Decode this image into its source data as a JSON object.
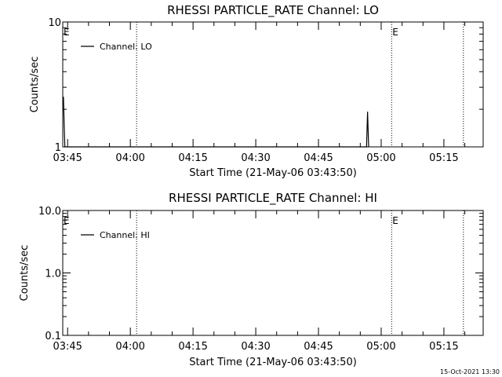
{
  "footer_timestamp": "15-Oct-2021 13:30",
  "chart_data": [
    {
      "type": "line",
      "title": "RHESSI PARTICLE_RATE Channel: LO",
      "xlabel": "Start Time (21-May-06 03:43:50)",
      "ylabel": "Counts/sec",
      "y_scale": "log",
      "ylim": [
        1,
        10
      ],
      "y_ticks": [
        "1",
        "10"
      ],
      "x_ticks": [
        "03:45",
        "04:00",
        "04:15",
        "04:30",
        "04:45",
        "05:00",
        "05:15"
      ],
      "legend": "top-left",
      "series": [
        {
          "name": "Channel: LO",
          "points": [
            {
              "time": "03:44:00",
              "value": 2.5
            },
            {
              "time": "03:44:10",
              "value": 1.5
            },
            {
              "time": "03:44:20",
              "value": 1.0
            },
            {
              "time": "04:56:30",
              "value": 1.0
            },
            {
              "time": "04:56:45",
              "value": 1.9
            },
            {
              "time": "04:57:00",
              "value": 1.0
            }
          ]
        }
      ],
      "markers": [
        {
          "type": "dotted-line",
          "time": "04:01:30"
        },
        {
          "type": "dotted-line",
          "time": "05:02:30",
          "label": "E"
        },
        {
          "type": "dotted-line",
          "time": "05:19:40"
        },
        {
          "type": "label",
          "time": "03:43:50",
          "label": "E"
        }
      ]
    },
    {
      "type": "line",
      "title": "RHESSI PARTICLE_RATE Channel: HI",
      "xlabel": "Start Time (21-May-06 03:43:50)",
      "ylabel": "Counts/sec",
      "y_scale": "log",
      "ylim": [
        0.1,
        10
      ],
      "y_ticks": [
        "0.1",
        "1.0",
        "10.0"
      ],
      "x_ticks": [
        "03:45",
        "04:00",
        "04:15",
        "04:30",
        "04:45",
        "05:00",
        "05:15"
      ],
      "legend": "top-left",
      "series": [
        {
          "name": "Channel: HI",
          "points": []
        }
      ],
      "markers": [
        {
          "type": "dotted-line",
          "time": "04:01:30"
        },
        {
          "type": "dotted-line",
          "time": "05:02:30",
          "label": "E"
        },
        {
          "type": "dotted-line",
          "time": "05:19:40"
        },
        {
          "type": "label",
          "time": "03:43:50",
          "label": "E"
        }
      ]
    }
  ]
}
